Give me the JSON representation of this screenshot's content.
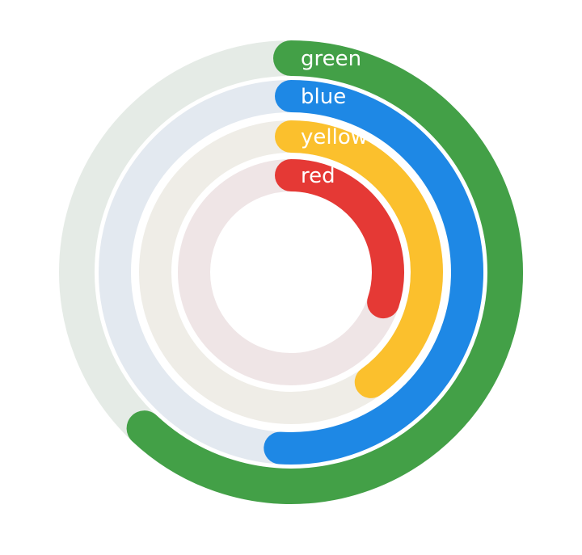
{
  "chart_data": {
    "type": "radial-bar",
    "categories": [
      "green",
      "blue",
      "yellow",
      "red"
    ],
    "values": [
      0.62,
      0.51,
      0.4,
      0.3
    ],
    "value_unit": "fraction of a full circle",
    "series": [
      {
        "name": "green",
        "value": 0.62,
        "color": "#43a047",
        "track_color": "#e5ebe6"
      },
      {
        "name": "blue",
        "value": 0.51,
        "color": "#1e88e5",
        "track_color": "#e3e9f0"
      },
      {
        "name": "yellow",
        "value": 0.4,
        "color": "#fbc02d",
        "track_color": "#efede7"
      },
      {
        "name": "red",
        "value": 0.3,
        "color": "#e53935",
        "track_color": "#efe5e6"
      }
    ],
    "range": [
      0,
      1
    ],
    "direction": "clockwise from top",
    "legend": "none",
    "grid": false
  }
}
